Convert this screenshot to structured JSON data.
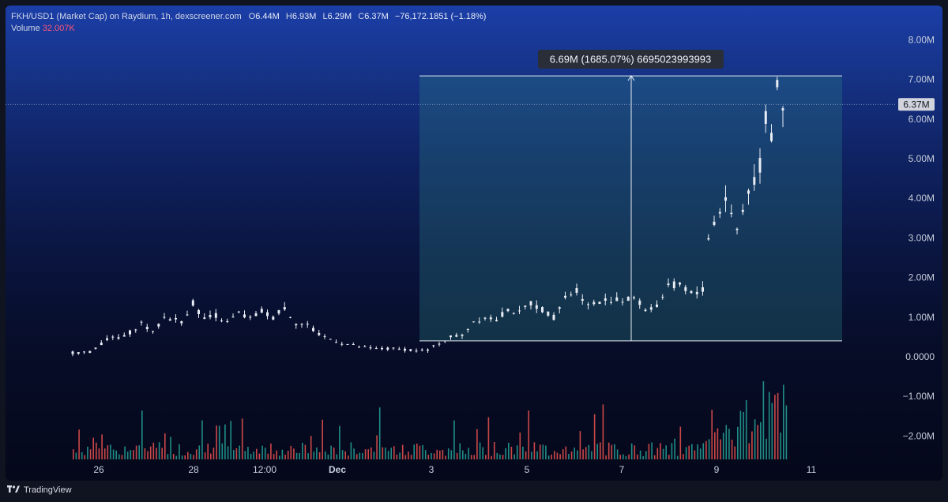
{
  "header": {
    "symbol": "FKH/USD1 (Market Cap) on Raydium, 1h, dexscreener.com",
    "open_key": "O",
    "open": "6.44M",
    "high_key": "H",
    "high": "6.93M",
    "low_key": "L",
    "low": "6.29M",
    "close_key": "C",
    "close": "6.37M",
    "change": "−76,172.1851 (−1.18%)",
    "volume_label": "Volume",
    "volume_value": "32.007K"
  },
  "footer": {
    "brand": "TradingView",
    "brand_icon": "tradingview-logo-icon"
  },
  "colors": {
    "up": "#26a69a",
    "down": "#ef5350",
    "candle": "#e8ecf4",
    "measure_fill": "#2a7f86"
  },
  "chart_data": {
    "type": "candlestick",
    "x_ticks": [
      "26",
      "28",
      "12:00",
      "Dec",
      "3",
      "5",
      "7",
      "9",
      "11"
    ],
    "y_ticks": [
      "8.00M",
      "7.00M",
      "6.00M",
      "5.00M",
      "4.00M",
      "3.00M",
      "2.00M",
      "1.00M",
      "0.0000",
      "−1.00M",
      "−2.00M"
    ],
    "y_range": [
      -2.6,
      8.5
    ],
    "last_price_label": "6.37M",
    "last_price": 6.37,
    "measure": {
      "label": "6.69M (1685.07%) 6695023993993",
      "from": 0.4,
      "to": 7.09
    },
    "price_path": [
      [
        0,
        0.1
      ],
      [
        3,
        0.12
      ],
      [
        6,
        0.45
      ],
      [
        9,
        0.5
      ],
      [
        12,
        0.85
      ],
      [
        14,
        0.6
      ],
      [
        16,
        1.0
      ],
      [
        19,
        0.9
      ],
      [
        21,
        1.35
      ],
      [
        23,
        0.95
      ],
      [
        25,
        1.05
      ],
      [
        27,
        0.85
      ],
      [
        29,
        1.1
      ],
      [
        31,
        0.95
      ],
      [
        33,
        1.15
      ],
      [
        35,
        1.0
      ],
      [
        37,
        1.25
      ],
      [
        39,
        0.85
      ],
      [
        41,
        0.8
      ],
      [
        43,
        0.55
      ],
      [
        45,
        0.45
      ],
      [
        47,
        0.35
      ],
      [
        50,
        0.25
      ],
      [
        53,
        0.2
      ],
      [
        56,
        0.2
      ],
      [
        59,
        0.18
      ],
      [
        62,
        0.15
      ],
      [
        64,
        0.35
      ],
      [
        66,
        0.5
      ],
      [
        68,
        0.55
      ],
      [
        70,
        0.9
      ],
      [
        72,
        1.0
      ],
      [
        74,
        0.95
      ],
      [
        76,
        1.2
      ],
      [
        78,
        1.1
      ],
      [
        80,
        1.35
      ],
      [
        82,
        1.2
      ],
      [
        84,
        1.0
      ],
      [
        86,
        1.5
      ],
      [
        88,
        1.7
      ],
      [
        90,
        1.3
      ],
      [
        92,
        1.4
      ],
      [
        94,
        1.45
      ],
      [
        96,
        1.4
      ],
      [
        98,
        1.5
      ],
      [
        100,
        1.2
      ],
      [
        102,
        1.3
      ],
      [
        104,
        1.75
      ],
      [
        106,
        1.85
      ],
      [
        108,
        1.6
      ],
      [
        110,
        1.7
      ],
      [
        111,
        3.0
      ],
      [
        112,
        3.4
      ],
      [
        114,
        4.0
      ],
      [
        116,
        3.2
      ],
      [
        118,
        4.2
      ],
      [
        120,
        4.8
      ],
      [
        121,
        6.0
      ],
      [
        122,
        5.6
      ],
      [
        123,
        6.9
      ],
      [
        124,
        6.37
      ]
    ]
  }
}
